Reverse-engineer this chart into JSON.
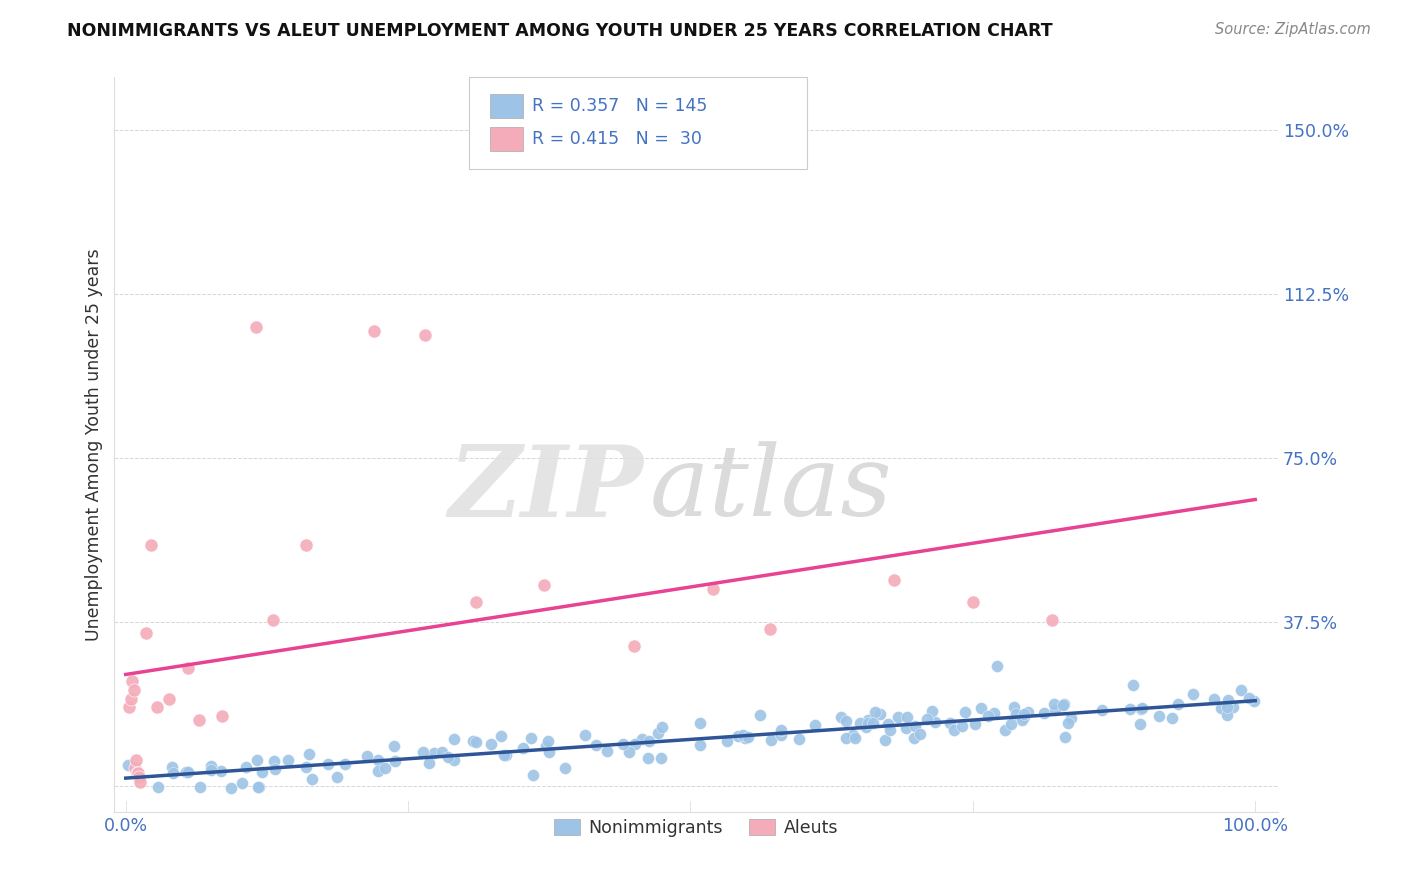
{
  "title": "NONIMMIGRANTS VS ALEUT UNEMPLOYMENT AMONG YOUTH UNDER 25 YEARS CORRELATION CHART",
  "source": "Source: ZipAtlas.com",
  "ylabel": "Unemployment Among Youth under 25 years",
  "xlim": [
    -0.01,
    1.02
  ],
  "ylim": [
    -0.06,
    1.62
  ],
  "yticks": [
    0.0,
    0.375,
    0.75,
    1.125,
    1.5
  ],
  "ytick_labels": [
    "",
    "37.5%",
    "75.0%",
    "112.5%",
    "150.0%"
  ],
  "xtick_labels": [
    "0.0%",
    "100.0%"
  ],
  "grid_color": "#cccccc",
  "background_color": "#ffffff",
  "blue_scatter_color": "#9DC3E6",
  "pink_scatter_color": "#F4ABBA",
  "blue_line_color": "#2F5597",
  "pink_line_color": "#E84393",
  "tick_color": "#4472C4",
  "r_blue": 0.357,
  "n_blue": 145,
  "r_pink": 0.415,
  "n_pink": 30,
  "legend_label_blue": "Nonimmigrants",
  "legend_label_pink": "Aleuts",
  "watermark_zip": "ZIP",
  "watermark_atlas": "atlas",
  "blue_line_start_y": 0.018,
  "blue_line_end_y": 0.195,
  "pink_line_start_y": 0.255,
  "pink_line_end_y": 0.655
}
